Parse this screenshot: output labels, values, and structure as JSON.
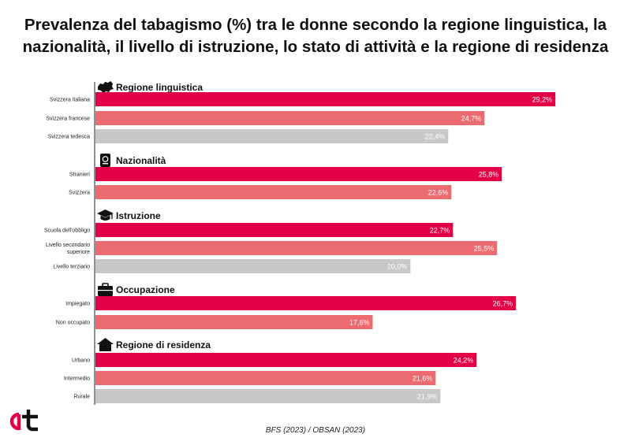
{
  "title_line1": "Prevalenza del tabagismo (%) tra le donne secondo la regione linguistica, la",
  "title_line2": "nazionalità, il livello di istruzione, lo stato di attività e la regione di residenza",
  "source": "BFS (2023) / OBSAN (2023)",
  "colors": {
    "primary": "#e40046",
    "secondary": "#ec6b70",
    "tertiary": "#c8c9c6",
    "axis": "#222222"
  },
  "chart_data": {
    "type": "bar",
    "orientation": "horizontal",
    "xlim": [
      0,
      30
    ],
    "value_suffix": "%",
    "decimal_separator": ",",
    "groups": [
      {
        "name": "Regione linguistica",
        "icon": "switzerland-map-icon",
        "categories": [
          "Svizzera italiana",
          "Svizzera francese",
          "Svizzera tedesca"
        ],
        "values": [
          29.2,
          24.7,
          22.4
        ],
        "labels": [
          "29,2%",
          "24,7%",
          "22,4%"
        ]
      },
      {
        "name": "Nazionalità",
        "icon": "passport-icon",
        "categories": [
          "Stranieri",
          "Svizzera"
        ],
        "values": [
          25.8,
          22.6
        ],
        "labels": [
          "25,8%",
          "22,6%"
        ]
      },
      {
        "name": "Istruzione",
        "icon": "graduation-cap-icon",
        "categories": [
          "Scuola dell'obbligo",
          "Livello secondario superiore",
          "Livello terziario"
        ],
        "values": [
          22.7,
          25.5,
          20.0
        ],
        "labels": [
          "22,7%",
          "25,5%",
          "20,0%"
        ]
      },
      {
        "name": "Occupazione",
        "icon": "briefcase-icon",
        "categories": [
          "Impiegato",
          "Non occupato"
        ],
        "values": [
          26.7,
          17.6
        ],
        "labels": [
          "26,7%",
          "17,6%"
        ]
      },
      {
        "name": "Regione di residenza",
        "icon": "house-icon",
        "categories": [
          "Urbano",
          "Intermedio",
          "Rurale"
        ],
        "values": [
          24.2,
          21.6,
          21.9
        ],
        "labels": [
          "24,2%",
          "21,6%",
          "21,9%"
        ]
      }
    ]
  }
}
